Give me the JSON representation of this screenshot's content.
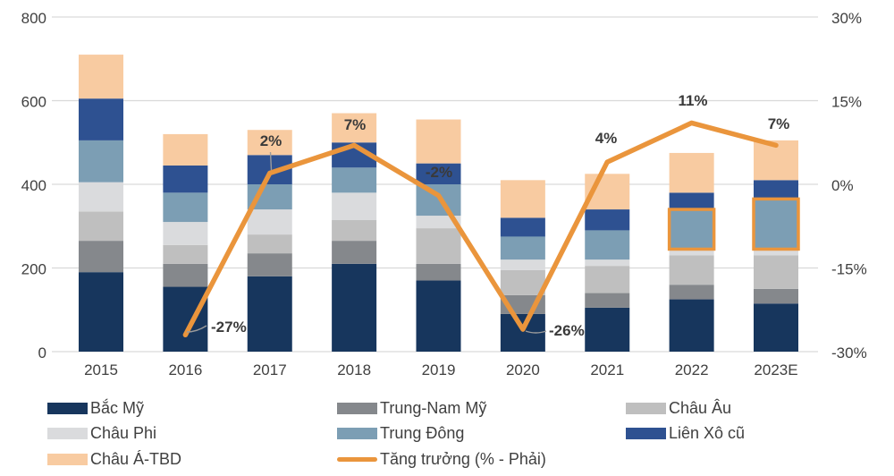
{
  "chart_data": {
    "type": "bar",
    "variant": "stacked-columns-with-growth-line",
    "title": "",
    "categories": [
      "2015",
      "2016",
      "2017",
      "2018",
      "2019",
      "2020",
      "2021",
      "2022",
      "2023E"
    ],
    "series": [
      {
        "name": "Bắc Mỹ",
        "color": "#17365D",
        "values": [
          190,
          155,
          180,
          210,
          170,
          90,
          105,
          125,
          115
        ]
      },
      {
        "name": "Trung-Nam Mỹ",
        "color": "#85888C",
        "values": [
          75,
          55,
          55,
          55,
          40,
          45,
          35,
          35,
          35
        ]
      },
      {
        "name": "Châu Âu",
        "color": "#BFBFBF",
        "values": [
          70,
          45,
          45,
          50,
          85,
          60,
          65,
          70,
          80
        ]
      },
      {
        "name": "Châu Phi",
        "color": "#DADBDD",
        "values": [
          70,
          55,
          60,
          65,
          30,
          25,
          15,
          15,
          15
        ]
      },
      {
        "name": "Trung Đông",
        "color": "#7C9EB4",
        "values": [
          100,
          70,
          60,
          60,
          75,
          55,
          70,
          95,
          120
        ]
      },
      {
        "name": "Liên Xô cũ",
        "color": "#2E5191",
        "values": [
          100,
          65,
          70,
          60,
          50,
          45,
          50,
          40,
          45
        ]
      },
      {
        "name": "Châu Á-TBD",
        "color": "#F8CBA1",
        "values": [
          105,
          75,
          60,
          70,
          105,
          90,
          85,
          95,
          95
        ]
      }
    ],
    "totals": [
      710,
      520,
      530,
      570,
      555,
      410,
      425,
      475,
      505
    ],
    "growth_line": {
      "name": "Tăng trưởng (% - Phải)",
      "color": "#EA953C",
      "axis": "right",
      "values": [
        null,
        -27,
        2,
        7,
        -2,
        -26,
        4,
        11,
        7
      ],
      "labels": [
        "",
        "-27%",
        "2%",
        "7%",
        "-2%",
        "-26%",
        "4%",
        "11%",
        "7%"
      ]
    },
    "left_axis": {
      "min": 0,
      "max": 800,
      "tick_values": [
        800,
        600,
        400,
        200,
        0
      ],
      "tick_labels": [
        "800",
        "600",
        "400",
        "200",
        "0"
      ]
    },
    "right_axis": {
      "min": -30,
      "max": 30,
      "tick_values": [
        30,
        15,
        0,
        -15,
        -30
      ],
      "tick_labels": [
        "30%",
        "15%",
        "0%",
        "-15%",
        "-30%"
      ]
    },
    "grid": true,
    "legend_position": "bottom",
    "highlighted_segments": [
      {
        "category": "2022",
        "series": "Trung Đông",
        "border_color": "#EA953C"
      },
      {
        "category": "2023E",
        "series": "Trung Đông",
        "border_color": "#EA953C"
      }
    ]
  },
  "legend": {
    "items": [
      {
        "label": "Bắc Mỹ",
        "color": "#17365D",
        "type": "box"
      },
      {
        "label": "Trung-Nam Mỹ",
        "color": "#85888C",
        "type": "box"
      },
      {
        "label": "Châu Âu",
        "color": "#BFBFBF",
        "type": "box"
      },
      {
        "label": "Châu Phi",
        "color": "#DADBDD",
        "type": "box"
      },
      {
        "label": "Trung Đông",
        "color": "#7C9EB4",
        "type": "box"
      },
      {
        "label": "Liên Xô cũ",
        "color": "#2E5191",
        "type": "box"
      },
      {
        "label": "Châu Á-TBD",
        "color": "#F8CBA1",
        "type": "box"
      },
      {
        "label": "Tăng trưởng (% - Phải)",
        "color": "#EA953C",
        "type": "line"
      }
    ]
  },
  "colors": {
    "background": "#FFFFFF",
    "gridline": "#D9D9D9",
    "axis_text": "#404040",
    "data_label_text": "#3A3A3A",
    "leader_line": "#9B9B9B"
  }
}
